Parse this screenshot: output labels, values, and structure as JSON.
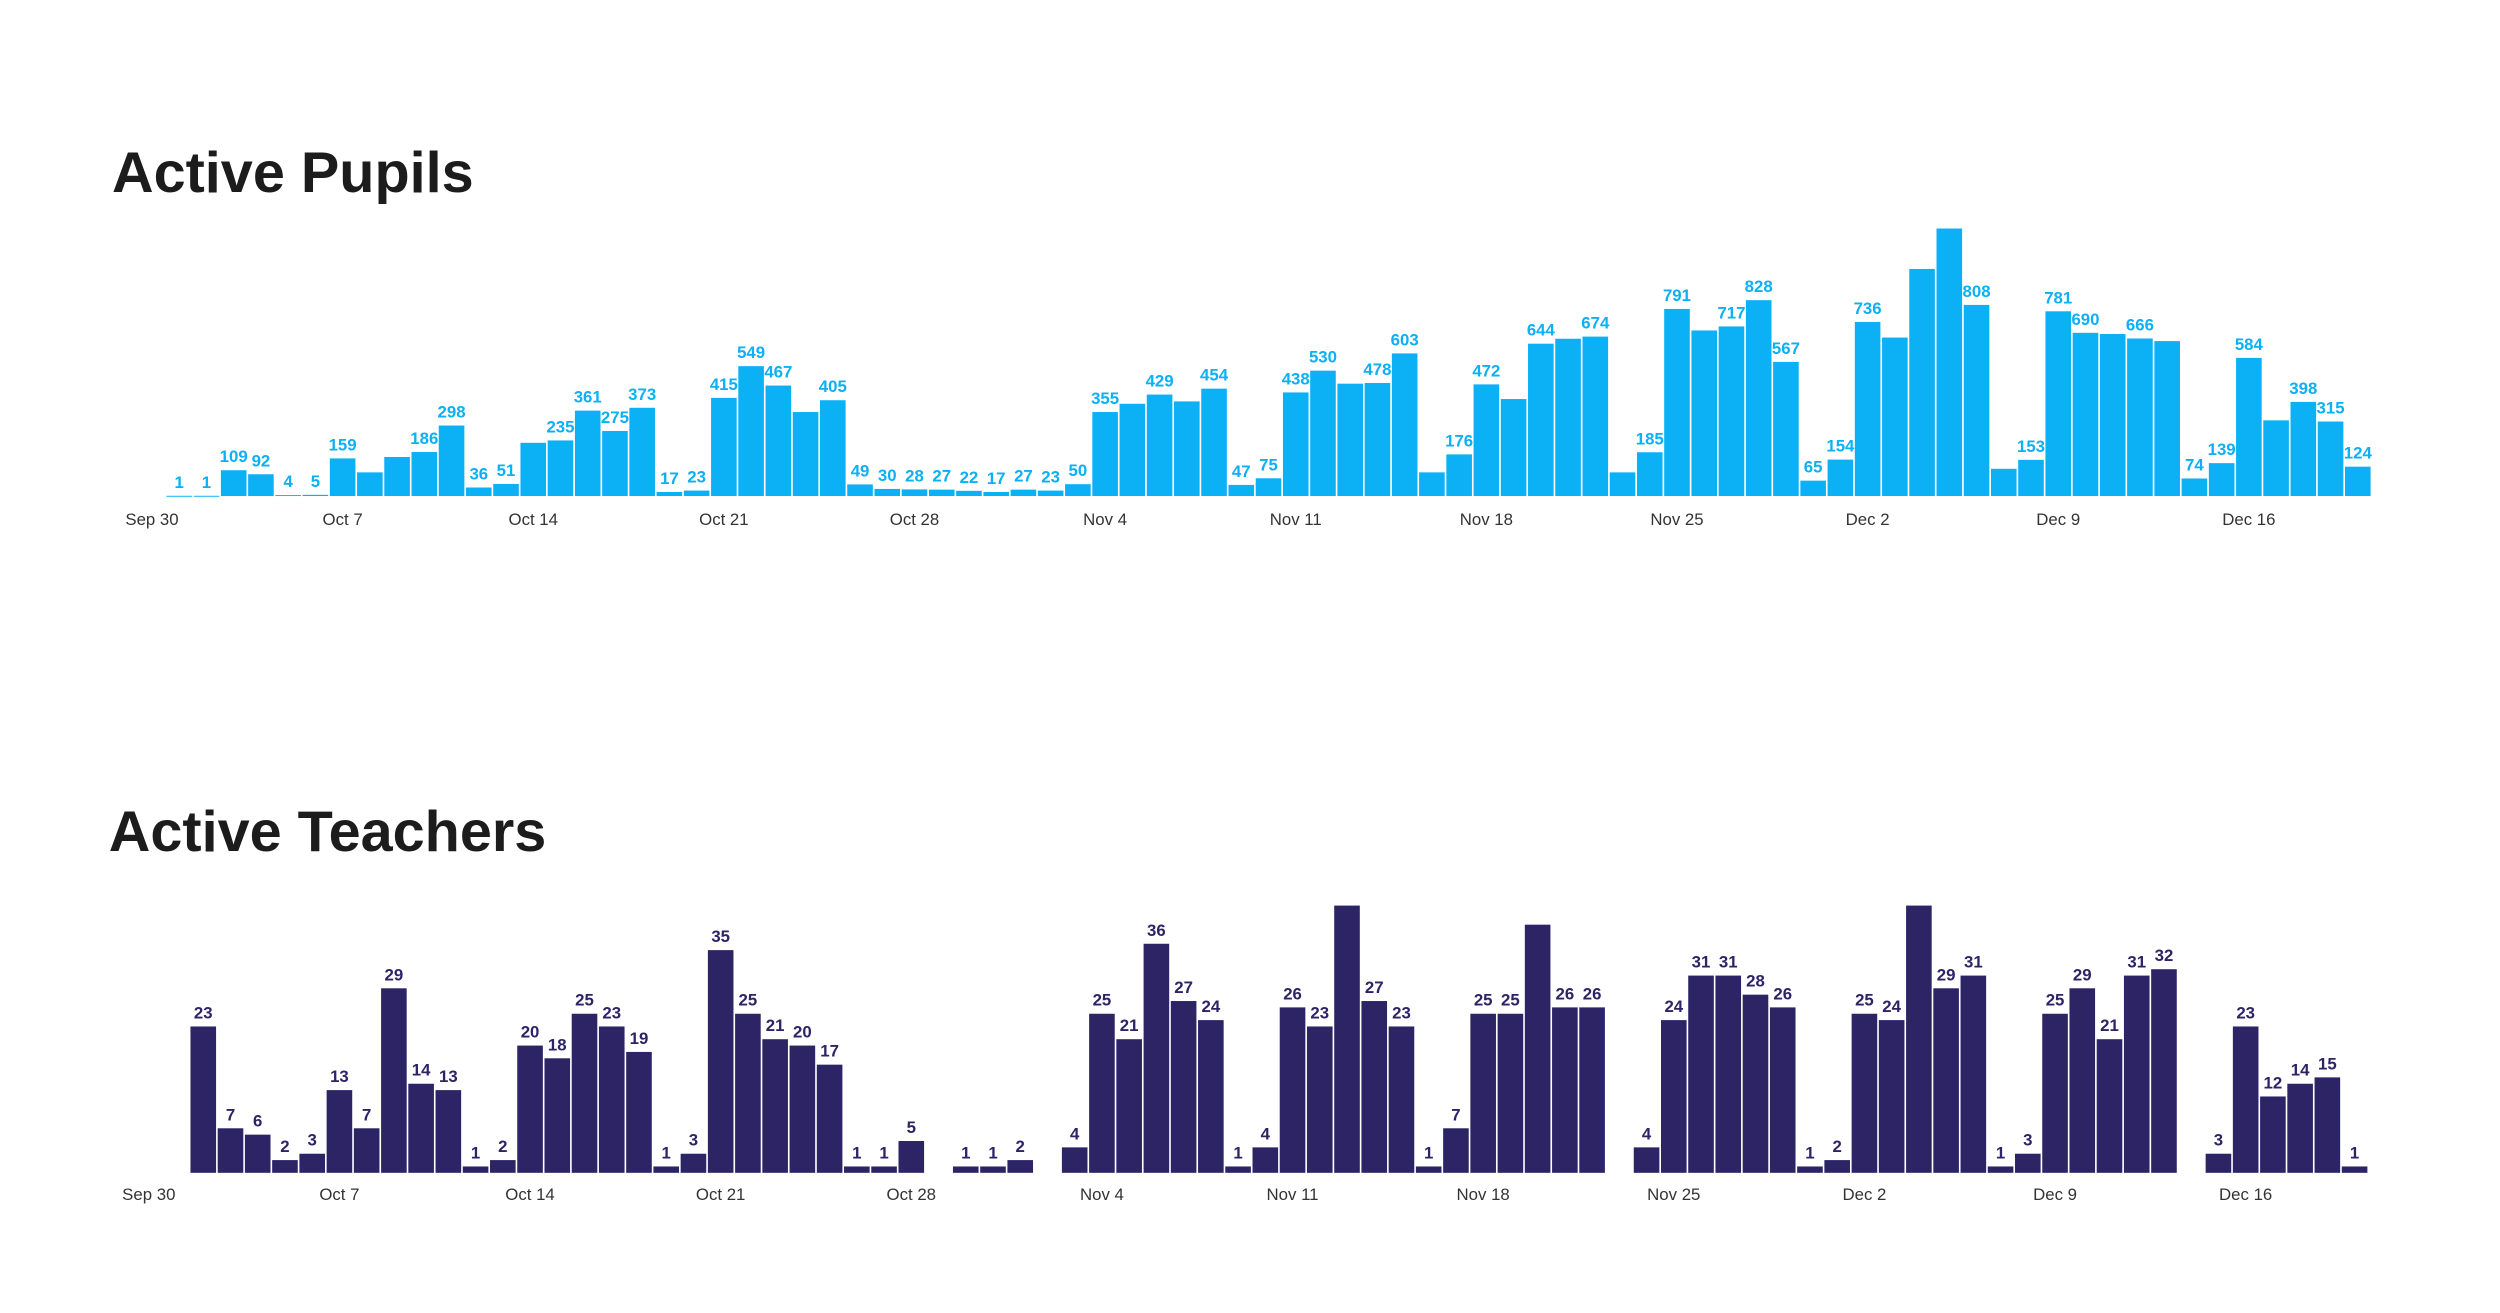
{
  "chart_data": [
    {
      "type": "bar",
      "title": "Active Pupils",
      "color": "#0bb0f5",
      "ylim": [
        0,
        1150
      ],
      "categories": [
        "Sep 30",
        null,
        null,
        null,
        null,
        null,
        null,
        "Oct 7",
        null,
        null,
        null,
        null,
        null,
        null,
        "Oct 14",
        null,
        null,
        null,
        null,
        null,
        null,
        "Oct 21",
        null,
        null,
        null,
        null,
        null,
        null,
        "Oct 28",
        null,
        null,
        null,
        null,
        null,
        null,
        "Nov 4",
        null,
        null,
        null,
        null,
        null,
        null,
        "Nov 11",
        null,
        null,
        null,
        null,
        null,
        null,
        "Nov 18",
        null,
        null,
        null,
        null,
        null,
        null,
        "Nov 25",
        null,
        null,
        null,
        null,
        null,
        null,
        "Dec 2",
        null,
        null,
        null,
        null,
        null,
        null,
        "Dec 9",
        null,
        null,
        null,
        null,
        null,
        null,
        "Dec 16",
        null,
        null,
        null,
        null
      ],
      "values": [
        null,
        1,
        1,
        109,
        92,
        4,
        5,
        159,
        100,
        165,
        186,
        298,
        36,
        51,
        225,
        235,
        361,
        275,
        373,
        17,
        23,
        415,
        549,
        467,
        355,
        405,
        49,
        30,
        28,
        27,
        22,
        17,
        27,
        23,
        50,
        355,
        390,
        429,
        400,
        454,
        47,
        75,
        438,
        530,
        475,
        478,
        603,
        100,
        176,
        472,
        410,
        644,
        665,
        674,
        100,
        185,
        791,
        700,
        717,
        828,
        567,
        65,
        154,
        736,
        670,
        960,
        1131,
        808,
        115,
        153,
        781,
        690,
        685,
        666,
        655,
        74,
        139,
        584,
        320,
        398,
        315,
        124
      ],
      "value_labels": [
        null,
        "1",
        "1",
        "109",
        "92",
        "4",
        "5",
        "159",
        null,
        null,
        "186",
        "298",
        "36",
        "51",
        null,
        "235",
        "361",
        "275",
        "373",
        "17",
        "23",
        "415",
        "549",
        "467",
        null,
        "405",
        "49",
        "30",
        "28",
        "27",
        "22",
        "17",
        "27",
        "23",
        "50",
        "355",
        null,
        "429",
        null,
        "454",
        "47",
        "75",
        "438",
        "530",
        null,
        "478",
        "603",
        null,
        "176",
        "472",
        null,
        "644",
        null,
        "674",
        null,
        "185",
        "791",
        null,
        "717",
        "828",
        "567",
        "65",
        "154",
        "736",
        null,
        null,
        null,
        "808",
        null,
        "153",
        "781",
        "690",
        null,
        "666",
        null,
        "74",
        "139",
        "584",
        null,
        "398",
        "315",
        "124"
      ]
    },
    {
      "type": "bar",
      "title": "Active Teachers",
      "color": "#2d2466",
      "ylim": [
        0,
        43
      ],
      "categories": [
        "Sep 30",
        null,
        null,
        null,
        null,
        null,
        null,
        "Oct 7",
        null,
        null,
        null,
        null,
        null,
        null,
        "Oct 14",
        null,
        null,
        null,
        null,
        null,
        null,
        "Oct 21",
        null,
        null,
        null,
        null,
        null,
        null,
        "Oct 28",
        null,
        null,
        null,
        null,
        null,
        null,
        "Nov 4",
        null,
        null,
        null,
        null,
        null,
        null,
        "Nov 11",
        null,
        null,
        null,
        null,
        null,
        null,
        "Nov 18",
        null,
        null,
        null,
        null,
        null,
        null,
        "Nov 25",
        null,
        null,
        null,
        null,
        null,
        null,
        "Dec 2",
        null,
        null,
        null,
        null,
        null,
        null,
        "Dec 9",
        null,
        null,
        null,
        null,
        null,
        null,
        "Dec 16",
        null,
        null,
        null,
        null
      ],
      "values": [
        null,
        null,
        23,
        7,
        6,
        2,
        3,
        13,
        7,
        29,
        14,
        13,
        1,
        2,
        20,
        18,
        25,
        23,
        19,
        1,
        3,
        35,
        25,
        21,
        20,
        17,
        1,
        1,
        5,
        null,
        1,
        1,
        2,
        null,
        4,
        25,
        21,
        36,
        27,
        24,
        1,
        4,
        26,
        23,
        42,
        27,
        23,
        1,
        7,
        25,
        25,
        39,
        26,
        26,
        null,
        4,
        24,
        31,
        31,
        28,
        26,
        1,
        2,
        25,
        24,
        42,
        29,
        31,
        1,
        3,
        25,
        29,
        21,
        31,
        32,
        null,
        3,
        23,
        12,
        14,
        15,
        1
      ],
      "value_labels": [
        null,
        null,
        "23",
        "7",
        "6",
        "2",
        "3",
        "13",
        "7",
        "29",
        "14",
        "13",
        "1",
        "2",
        "20",
        "18",
        "25",
        "23",
        "19",
        "1",
        "3",
        "35",
        "25",
        "21",
        "20",
        "17",
        "1",
        "1",
        "5",
        null,
        "1",
        "1",
        "2",
        null,
        "4",
        "25",
        "21",
        "36",
        "27",
        "24",
        "1",
        "4",
        "26",
        "23",
        null,
        "27",
        "23",
        "1",
        "7",
        "25",
        "25",
        null,
        "26",
        "26",
        null,
        "4",
        "24",
        "31",
        "31",
        "28",
        "26",
        "1",
        "2",
        "25",
        "24",
        null,
        "29",
        "31",
        "1",
        "3",
        "25",
        "29",
        "21",
        "31",
        "32",
        null,
        "3",
        "23",
        "12",
        "14",
        "15",
        "1"
      ]
    }
  ]
}
